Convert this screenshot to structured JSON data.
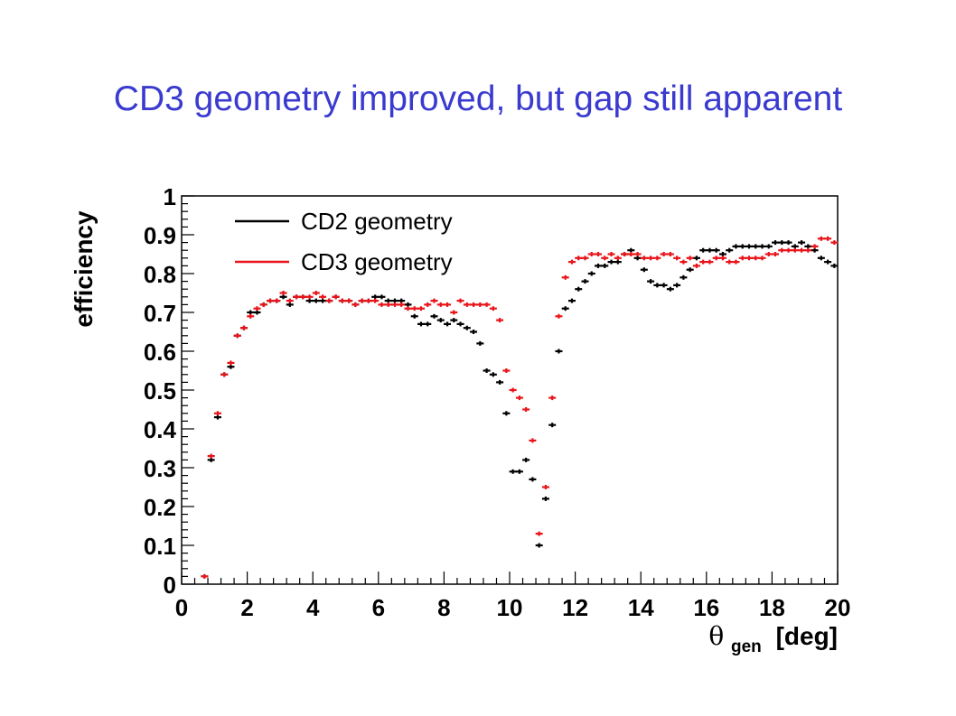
{
  "slide": {
    "title": "CD3 geometry improved, but gap still apparent"
  },
  "colors": {
    "title": "#3a3ad0",
    "cd2": "#000000",
    "cd3": "#e8141a"
  },
  "chart_data": {
    "type": "scatter",
    "xlabel_symbol": "θ",
    "xlabel_subscript": "gen",
    "xlabel_unit": "[deg]",
    "ylabel": "efficiency",
    "xlim": [
      0,
      20
    ],
    "ylim": [
      0,
      1
    ],
    "xticks": [
      "0",
      "2",
      "4",
      "6",
      "8",
      "10",
      "12",
      "14",
      "16",
      "18",
      "20"
    ],
    "yticks": [
      "0",
      "0.1",
      "0.2",
      "0.3",
      "0.4",
      "0.5",
      "0.6",
      "0.7",
      "0.8",
      "0.9",
      "1"
    ],
    "legend_position": "top-left",
    "x": [
      0.7,
      0.9,
      1.1,
      1.3,
      1.5,
      1.7,
      1.9,
      2.1,
      2.3,
      2.5,
      2.7,
      2.9,
      3.1,
      3.3,
      3.5,
      3.7,
      3.9,
      4.1,
      4.3,
      4.5,
      4.7,
      4.9,
      5.1,
      5.3,
      5.5,
      5.7,
      5.9,
      6.1,
      6.3,
      6.5,
      6.7,
      6.9,
      7.1,
      7.3,
      7.5,
      7.7,
      7.9,
      8.1,
      8.3,
      8.5,
      8.7,
      8.9,
      9.1,
      9.3,
      9.5,
      9.7,
      9.9,
      10.1,
      10.3,
      10.5,
      10.7,
      10.9,
      11.1,
      11.3,
      11.5,
      11.7,
      11.9,
      12.1,
      12.3,
      12.5,
      12.7,
      12.9,
      13.1,
      13.3,
      13.5,
      13.7,
      13.9,
      14.1,
      14.3,
      14.5,
      14.7,
      14.9,
      15.1,
      15.3,
      15.5,
      15.7,
      15.9,
      16.1,
      16.3,
      16.5,
      16.7,
      16.9,
      17.1,
      17.3,
      17.5,
      17.7,
      17.9,
      18.1,
      18.3,
      18.5,
      18.7,
      18.9,
      19.1,
      19.3,
      19.5,
      19.7,
      19.9
    ],
    "series": [
      {
        "name": "CD2 geometry",
        "color": "#000000",
        "values": [
          0.02,
          0.32,
          0.43,
          0.54,
          0.56,
          0.64,
          0.66,
          0.7,
          0.7,
          0.72,
          0.73,
          0.73,
          0.74,
          0.72,
          0.74,
          0.74,
          0.73,
          0.73,
          0.73,
          0.73,
          0.74,
          0.73,
          0.73,
          0.72,
          0.73,
          0.73,
          0.74,
          0.74,
          0.73,
          0.73,
          0.73,
          0.72,
          0.69,
          0.67,
          0.67,
          0.69,
          0.68,
          0.67,
          0.68,
          0.67,
          0.66,
          0.65,
          0.62,
          0.55,
          0.54,
          0.52,
          0.44,
          0.29,
          0.29,
          0.32,
          0.27,
          0.1,
          0.22,
          0.41,
          0.6,
          0.71,
          0.73,
          0.76,
          0.78,
          0.8,
          0.82,
          0.82,
          0.83,
          0.83,
          0.85,
          0.86,
          0.84,
          0.81,
          0.78,
          0.77,
          0.77,
          0.76,
          0.77,
          0.79,
          0.81,
          0.84,
          0.86,
          0.86,
          0.86,
          0.85,
          0.86,
          0.87,
          0.87,
          0.87,
          0.87,
          0.87,
          0.87,
          0.88,
          0.88,
          0.88,
          0.87,
          0.88,
          0.87,
          0.86,
          0.84,
          0.83,
          0.82
        ]
      },
      {
        "name": "CD3 geometry",
        "color": "#e8141a",
        "values": [
          0.02,
          0.33,
          0.44,
          0.54,
          0.57,
          0.64,
          0.66,
          0.69,
          0.71,
          0.72,
          0.73,
          0.73,
          0.75,
          0.73,
          0.74,
          0.74,
          0.74,
          0.75,
          0.74,
          0.73,
          0.74,
          0.73,
          0.73,
          0.72,
          0.73,
          0.73,
          0.73,
          0.72,
          0.72,
          0.72,
          0.72,
          0.71,
          0.71,
          0.71,
          0.72,
          0.73,
          0.72,
          0.72,
          0.7,
          0.73,
          0.72,
          0.72,
          0.72,
          0.72,
          0.71,
          0.68,
          0.55,
          0.5,
          0.48,
          0.45,
          0.37,
          0.13,
          0.25,
          0.48,
          0.69,
          0.79,
          0.83,
          0.84,
          0.84,
          0.85,
          0.85,
          0.84,
          0.85,
          0.84,
          0.85,
          0.85,
          0.85,
          0.84,
          0.84,
          0.84,
          0.85,
          0.85,
          0.84,
          0.83,
          0.84,
          0.82,
          0.83,
          0.83,
          0.84,
          0.84,
          0.83,
          0.83,
          0.84,
          0.84,
          0.84,
          0.84,
          0.85,
          0.85,
          0.86,
          0.86,
          0.86,
          0.86,
          0.86,
          0.87,
          0.89,
          0.89,
          0.88
        ]
      }
    ]
  }
}
